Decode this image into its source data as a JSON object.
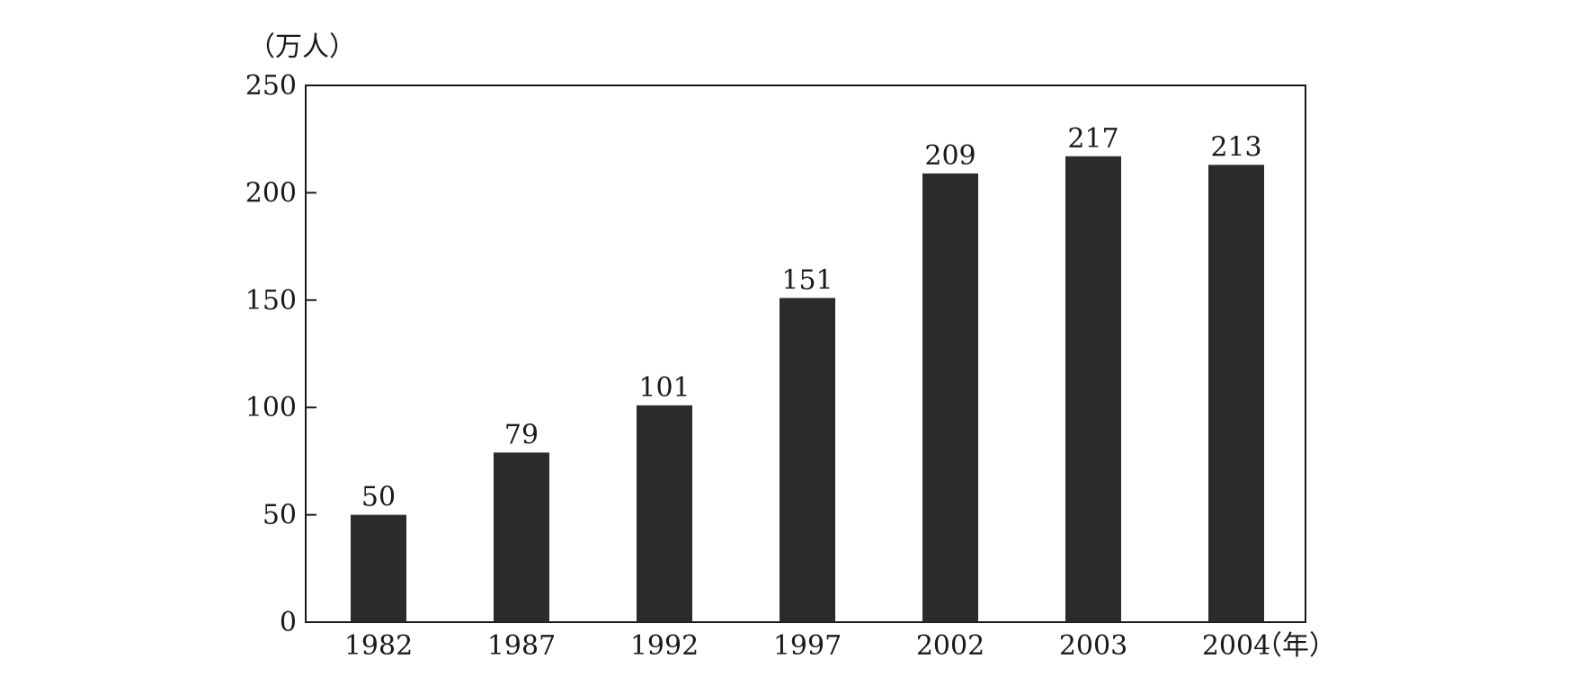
{
  "chart_data": {
    "type": "bar",
    "categories": [
      "1982",
      "1987",
      "1992",
      "1997",
      "2002",
      "2003",
      "2004"
    ],
    "values": [
      50,
      79,
      101,
      151,
      209,
      217,
      213
    ],
    "data_labels": [
      "50",
      "79",
      "101",
      "151",
      "209",
      "217",
      "213"
    ],
    "yticks": [
      0,
      50,
      100,
      150,
      200,
      250
    ],
    "ylim": [
      0,
      250
    ],
    "ylabel": "（万人）",
    "xlabel": "（年）",
    "grid": false,
    "bar_color": "#2b2b2b"
  }
}
